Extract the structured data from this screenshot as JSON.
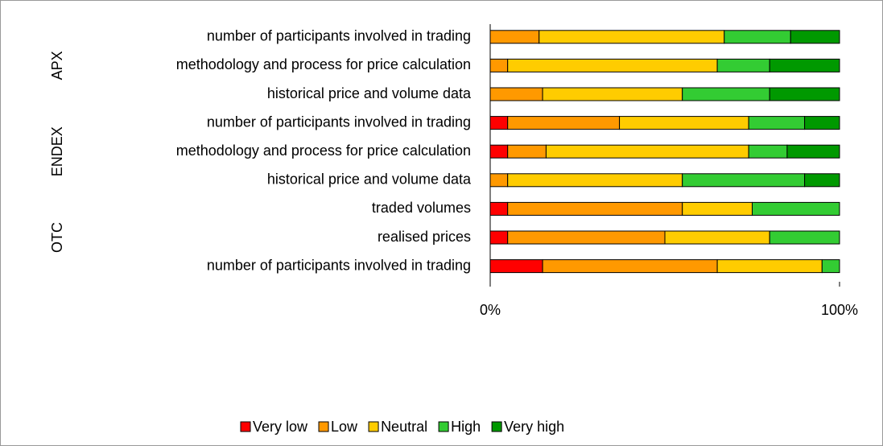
{
  "chart_data": {
    "type": "stacked-bar",
    "orientation": "horizontal",
    "categories": [
      "number of participants involved in trading",
      "methodology and process for price calculation",
      "historical price and volume data",
      "number of participants involved in trading",
      "methodology and process for price calculation",
      "historical price and volume data",
      "traded volumes",
      "realised prices",
      "number of participants involved in trading"
    ],
    "groups": [
      {
        "name": "APX",
        "size": 3
      },
      {
        "name": "ENDEX",
        "size": 3
      },
      {
        "name": "OTC",
        "size": 3
      }
    ],
    "series": [
      {
        "name": "Very low",
        "color": "#ff0000",
        "values": [
          0,
          0,
          0,
          5,
          5,
          0,
          5,
          5,
          15
        ]
      },
      {
        "name": "Low",
        "color": "#ff9900",
        "values": [
          14,
          5,
          15,
          32,
          11,
          5,
          50,
          45,
          50
        ]
      },
      {
        "name": "Neutral",
        "color": "#ffcc00",
        "values": [
          53,
          60,
          40,
          37,
          58,
          50,
          20,
          30,
          30
        ]
      },
      {
        "name": "High",
        "color": "#33cc33",
        "values": [
          19,
          15,
          25,
          16,
          11,
          35,
          25,
          20,
          5
        ]
      },
      {
        "name": "Very high",
        "color": "#009900",
        "values": [
          14,
          20,
          20,
          10,
          15,
          10,
          0,
          0,
          0
        ]
      }
    ],
    "xlim": [
      0,
      100
    ],
    "xticks": [
      {
        "value": 0,
        "label": "0%"
      },
      {
        "value": 100,
        "label": "100%"
      }
    ],
    "legend": "bottom"
  }
}
